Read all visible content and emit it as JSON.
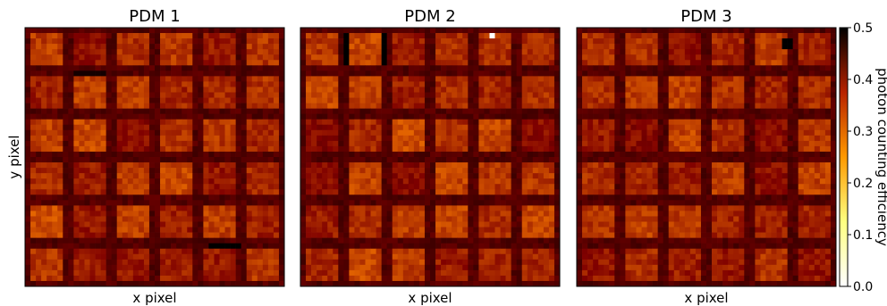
{
  "chart_data": {
    "type": "heatmap",
    "panels": [
      {
        "title": "PDM 1",
        "xlabel": "x pixel",
        "ylabel": "y pixel"
      },
      {
        "title": "PDM 2",
        "xlabel": "x pixel",
        "ylabel": ""
      },
      {
        "title": "PDM 3",
        "xlabel": "x pixel",
        "ylabel": ""
      }
    ],
    "grid": {
      "pixels_per_side": 48,
      "ecs_per_side": 6,
      "pixels_per_ec": 8
    },
    "colorbar": {
      "label": "photon counting efficiency",
      "range": [
        0.0,
        0.5
      ],
      "ticks": [
        "0.0",
        "0.1",
        "0.2",
        "0.3",
        "0.4",
        "0.5"
      ],
      "colormap": "afmhot_r"
    },
    "dead_pixels": [
      {
        "panel": 1,
        "description": "horizontal dark strip near bottom-right"
      },
      {
        "panel": 2,
        "description": "white (saturated low) pixel near top"
      },
      {
        "panel": 3,
        "description": "black pixels near top-right"
      }
    ]
  }
}
